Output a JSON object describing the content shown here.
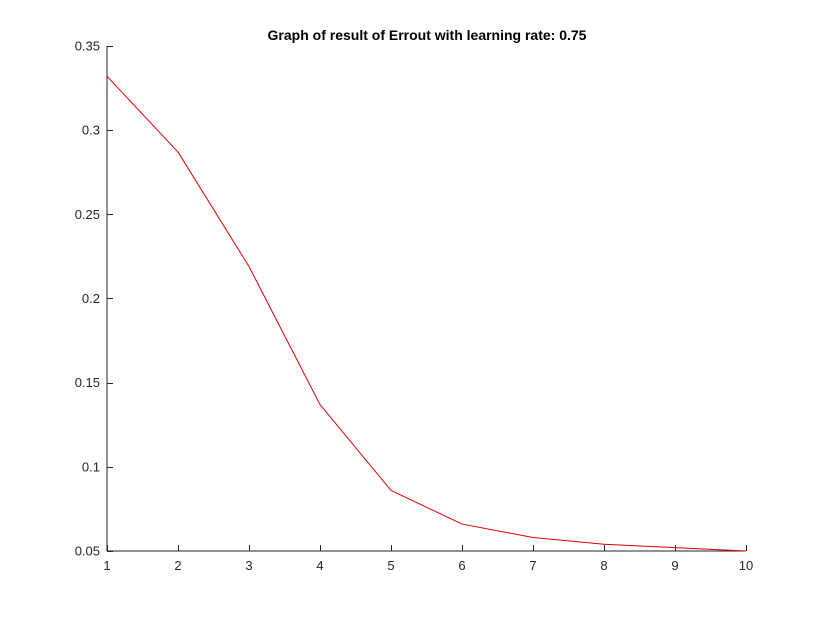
{
  "chart_data": {
    "type": "line",
    "title": "Graph of result of Errout with learning rate: 0.75",
    "xlabel": "",
    "ylabel": "",
    "x": [
      1,
      2,
      3,
      4,
      5,
      6,
      7,
      8,
      9,
      10
    ],
    "series": [
      {
        "name": "Errout",
        "color": "#e00000",
        "values": [
          0.332,
          0.287,
          0.219,
          0.137,
          0.086,
          0.066,
          0.058,
          0.054,
          0.052,
          0.05
        ]
      }
    ],
    "xlim": [
      1,
      10
    ],
    "ylim": [
      0.05,
      0.35
    ],
    "xticks": [
      1,
      2,
      3,
      4,
      5,
      6,
      7,
      8,
      9,
      10
    ],
    "xtick_labels": [
      "1",
      "2",
      "3",
      "4",
      "5",
      "6",
      "7",
      "8",
      "9",
      "10"
    ],
    "yticks": [
      0.05,
      0.1,
      0.15,
      0.2,
      0.25,
      0.3,
      0.35
    ],
    "ytick_labels": [
      "0.05",
      "0.1",
      "0.15",
      "0.2",
      "0.25",
      "0.3",
      "0.35"
    ],
    "grid": false,
    "box": false,
    "axis_color": "#262626"
  }
}
